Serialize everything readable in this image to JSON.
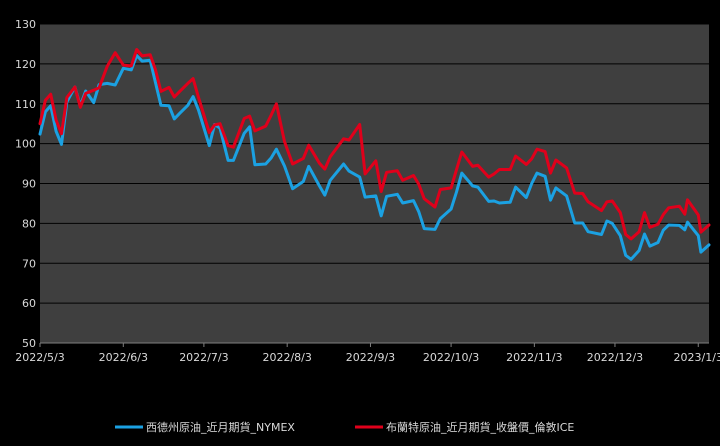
{
  "chart_data": {
    "type": "line",
    "title": "",
    "xlabel": "",
    "ylabel": "",
    "ylim": [
      50,
      130
    ],
    "yticks": [
      50,
      60,
      70,
      80,
      90,
      100,
      110,
      120,
      130
    ],
    "xlim": [
      "2022-05-03",
      "2023-01-07"
    ],
    "xticks": [
      "2022/5/3",
      "2022/6/3",
      "2022/7/3",
      "2022/8/3",
      "2022/9/3",
      "2022/10/3",
      "2022/11/3",
      "2022/12/3",
      "2023/1/3"
    ],
    "grid": true,
    "legend_position": "bottom",
    "colors": {
      "plot_bg": "#3f3f3f",
      "page_bg": "#000000",
      "gridline": "#000000",
      "text": "#d9d9d9"
    },
    "series": [
      {
        "name": "西德州原油_近月期貨_NYMEX",
        "color": "#1ba1e2",
        "points": [
          [
            "2022-05-03",
            102.4
          ],
          [
            "2022-05-05",
            108
          ],
          [
            "2022-05-07",
            109.5
          ],
          [
            "2022-05-09",
            103.1
          ],
          [
            "2022-05-11",
            99.8
          ],
          [
            "2022-05-13",
            110.5
          ],
          [
            "2022-05-16",
            114.2
          ],
          [
            "2022-05-18",
            109.5
          ],
          [
            "2022-05-20",
            113.2
          ],
          [
            "2022-05-23",
            110.3
          ],
          [
            "2022-05-25",
            114.8
          ],
          [
            "2022-05-28",
            115.1
          ],
          [
            "2022-05-31",
            114.7
          ],
          [
            "2022-06-03",
            118.9
          ],
          [
            "2022-06-06",
            118.5
          ],
          [
            "2022-06-08",
            122.1
          ],
          [
            "2022-06-10",
            120.7
          ],
          [
            "2022-06-13",
            120.9
          ],
          [
            "2022-06-15",
            115.3
          ],
          [
            "2022-06-17",
            109.6
          ],
          [
            "2022-06-20",
            109.5
          ],
          [
            "2022-06-22",
            106.2
          ],
          [
            "2022-06-24",
            107.6
          ],
          [
            "2022-06-27",
            109.6
          ],
          [
            "2022-06-29",
            111.8
          ],
          [
            "2022-07-01",
            108.4
          ],
          [
            "2022-07-05",
            99.5
          ],
          [
            "2022-07-07",
            104.8
          ],
          [
            "2022-07-09",
            103.9
          ],
          [
            "2022-07-12",
            95.8
          ],
          [
            "2022-07-14",
            95.8
          ],
          [
            "2022-07-18",
            102.6
          ],
          [
            "2022-07-20",
            104.2
          ],
          [
            "2022-07-22",
            94.7
          ],
          [
            "2022-07-26",
            94.9
          ],
          [
            "2022-07-28",
            96.4
          ],
          [
            "2022-07-30",
            98.6
          ],
          [
            "2022-08-02",
            94.4
          ],
          [
            "2022-08-05",
            88.7
          ],
          [
            "2022-08-09",
            90.5
          ],
          [
            "2022-08-11",
            94.3
          ],
          [
            "2022-08-15",
            89.4
          ],
          [
            "2022-08-17",
            87.1
          ],
          [
            "2022-08-19",
            90.8
          ],
          [
            "2022-08-24",
            94.9
          ],
          [
            "2022-08-26",
            93.1
          ],
          [
            "2022-08-30",
            91.6
          ],
          [
            "2022-09-01",
            86.6
          ],
          [
            "2022-09-05",
            86.9
          ],
          [
            "2022-09-07",
            81.9
          ],
          [
            "2022-09-09",
            86.8
          ],
          [
            "2022-09-13",
            87.3
          ],
          [
            "2022-09-15",
            85.1
          ],
          [
            "2022-09-19",
            85.7
          ],
          [
            "2022-09-21",
            82.9
          ],
          [
            "2022-09-23",
            78.7
          ],
          [
            "2022-09-27",
            78.5
          ],
          [
            "2022-09-29",
            81.2
          ],
          [
            "2022-10-03",
            83.6
          ],
          [
            "2022-10-05",
            87.8
          ],
          [
            "2022-10-07",
            92.6
          ],
          [
            "2022-10-11",
            89.4
          ],
          [
            "2022-10-13",
            89.1
          ],
          [
            "2022-10-17",
            85.5
          ],
          [
            "2022-10-19",
            85.6
          ],
          [
            "2022-10-21",
            85.1
          ],
          [
            "2022-10-25",
            85.3
          ],
          [
            "2022-10-27",
            89.1
          ],
          [
            "2022-10-31",
            86.5
          ],
          [
            "2022-11-02",
            90.0
          ],
          [
            "2022-11-04",
            92.6
          ],
          [
            "2022-11-07",
            91.8
          ],
          [
            "2022-11-09",
            85.8
          ],
          [
            "2022-11-11",
            88.9
          ],
          [
            "2022-11-15",
            86.9
          ],
          [
            "2022-11-18",
            80.1
          ],
          [
            "2022-11-21",
            80.1
          ],
          [
            "2022-11-23",
            77.9
          ],
          [
            "2022-11-28",
            77.2
          ],
          [
            "2022-11-30",
            80.6
          ],
          [
            "2022-12-02",
            80.0
          ],
          [
            "2022-12-05",
            76.9
          ],
          [
            "2022-12-07",
            72.0
          ],
          [
            "2022-12-09",
            71.0
          ],
          [
            "2022-12-12",
            73.2
          ],
          [
            "2022-12-14",
            77.3
          ],
          [
            "2022-12-16",
            74.3
          ],
          [
            "2022-12-19",
            75.2
          ],
          [
            "2022-12-21",
            78.3
          ],
          [
            "2022-12-23",
            79.6
          ],
          [
            "2022-12-27",
            79.5
          ],
          [
            "2022-12-29",
            78.4
          ],
          [
            "2022-12-30",
            80.3
          ],
          [
            "2023-01-03",
            76.9
          ],
          [
            "2023-01-04",
            72.8
          ],
          [
            "2023-01-07",
            74.6
          ]
        ]
      },
      {
        "name": "布蘭特原油_近月期貨_收盤價_倫敦ICE",
        "color": "#e0001b",
        "points": [
          [
            "2022-05-03",
            105.0
          ],
          [
            "2022-05-05",
            110.9
          ],
          [
            "2022-05-07",
            112.4
          ],
          [
            "2022-05-09",
            105.9
          ],
          [
            "2022-05-11",
            102.5
          ],
          [
            "2022-05-13",
            111.6
          ],
          [
            "2022-05-16",
            114.2
          ],
          [
            "2022-05-18",
            109.1
          ],
          [
            "2022-05-20",
            112.6
          ],
          [
            "2022-05-23",
            113.4
          ],
          [
            "2022-05-25",
            114.0
          ],
          [
            "2022-05-28",
            119.4
          ],
          [
            "2022-05-31",
            122.8
          ],
          [
            "2022-06-03",
            119.7
          ],
          [
            "2022-06-06",
            119.5
          ],
          [
            "2022-06-08",
            123.6
          ],
          [
            "2022-06-10",
            122.0
          ],
          [
            "2022-06-13",
            122.3
          ],
          [
            "2022-06-15",
            118.5
          ],
          [
            "2022-06-17",
            113.1
          ],
          [
            "2022-06-20",
            114.1
          ],
          [
            "2022-06-22",
            111.7
          ],
          [
            "2022-06-24",
            113.1
          ],
          [
            "2022-06-27",
            115.1
          ],
          [
            "2022-06-29",
            116.3
          ],
          [
            "2022-07-01",
            111.6
          ],
          [
            "2022-07-05",
            102.8
          ],
          [
            "2022-07-07",
            104.7
          ],
          [
            "2022-07-09",
            105.0
          ],
          [
            "2022-07-12",
            99.5
          ],
          [
            "2022-07-14",
            99.1
          ],
          [
            "2022-07-18",
            106.3
          ],
          [
            "2022-07-20",
            106.9
          ],
          [
            "2022-07-22",
            103.2
          ],
          [
            "2022-07-26",
            104.4
          ],
          [
            "2022-07-28",
            107.1
          ],
          [
            "2022-07-30",
            110.0
          ],
          [
            "2022-08-02",
            100.5
          ],
          [
            "2022-08-05",
            94.9
          ],
          [
            "2022-08-09",
            96.3
          ],
          [
            "2022-08-11",
            99.6
          ],
          [
            "2022-08-15",
            95.1
          ],
          [
            "2022-08-17",
            93.6
          ],
          [
            "2022-08-19",
            96.7
          ],
          [
            "2022-08-24",
            101.2
          ],
          [
            "2022-08-26",
            100.9
          ],
          [
            "2022-08-30",
            104.8
          ],
          [
            "2022-09-01",
            92.4
          ],
          [
            "2022-09-05",
            95.7
          ],
          [
            "2022-09-07",
            88.0
          ],
          [
            "2022-09-09",
            92.8
          ],
          [
            "2022-09-13",
            93.2
          ],
          [
            "2022-09-15",
            90.8
          ],
          [
            "2022-09-19",
            92.0
          ],
          [
            "2022-09-21",
            89.8
          ],
          [
            "2022-09-23",
            86.2
          ],
          [
            "2022-09-27",
            84.1
          ],
          [
            "2022-09-29",
            88.5
          ],
          [
            "2022-10-03",
            88.9
          ],
          [
            "2022-10-05",
            93.4
          ],
          [
            "2022-10-07",
            97.9
          ],
          [
            "2022-10-11",
            94.3
          ],
          [
            "2022-10-13",
            94.6
          ],
          [
            "2022-10-17",
            91.6
          ],
          [
            "2022-10-19",
            92.4
          ],
          [
            "2022-10-21",
            93.5
          ],
          [
            "2022-10-25",
            93.5
          ],
          [
            "2022-10-27",
            96.9
          ],
          [
            "2022-10-31",
            94.8
          ],
          [
            "2022-11-02",
            96.2
          ],
          [
            "2022-11-04",
            98.6
          ],
          [
            "2022-11-07",
            98.0
          ],
          [
            "2022-11-09",
            92.6
          ],
          [
            "2022-11-11",
            95.9
          ],
          [
            "2022-11-15",
            93.9
          ],
          [
            "2022-11-18",
            87.6
          ],
          [
            "2022-11-21",
            87.5
          ],
          [
            "2022-11-23",
            85.4
          ],
          [
            "2022-11-28",
            83.2
          ],
          [
            "2022-11-30",
            85.4
          ],
          [
            "2022-12-02",
            85.6
          ],
          [
            "2022-12-05",
            82.7
          ],
          [
            "2022-12-07",
            77.2
          ],
          [
            "2022-12-09",
            76.1
          ],
          [
            "2022-12-12",
            77.9
          ],
          [
            "2022-12-14",
            82.7
          ],
          [
            "2022-12-16",
            79.0
          ],
          [
            "2022-12-19",
            79.8
          ],
          [
            "2022-12-21",
            82.2
          ],
          [
            "2022-12-23",
            83.9
          ],
          [
            "2022-12-27",
            84.3
          ],
          [
            "2022-12-29",
            82.3
          ],
          [
            "2022-12-30",
            85.9
          ],
          [
            "2023-01-03",
            82.1
          ],
          [
            "2023-01-04",
            77.8
          ],
          [
            "2023-01-07",
            79.6
          ]
        ]
      }
    ]
  }
}
